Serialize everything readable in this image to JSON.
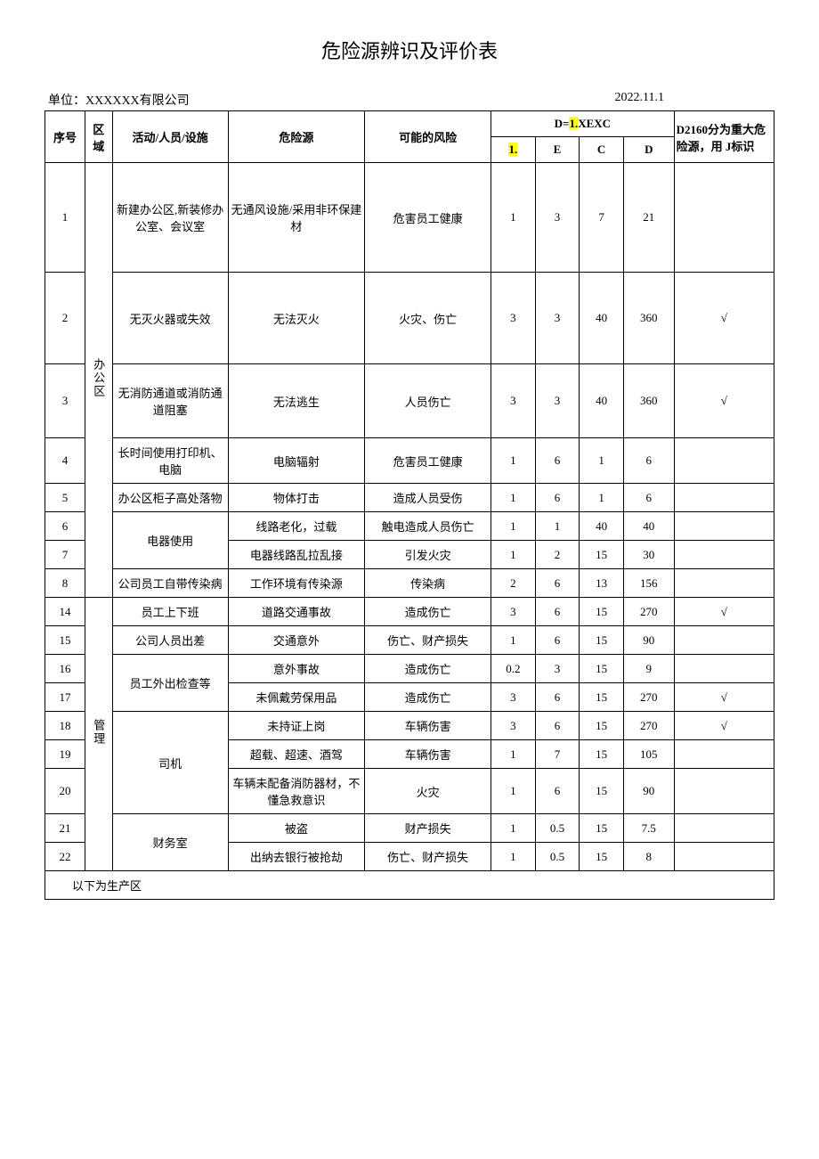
{
  "doc": {
    "title": "危险源辨识及评价表",
    "unit_label": "单位：",
    "unit_name": "XXXXXX有限公司",
    "date": "2022.11.1"
  },
  "header": {
    "seq": "序号",
    "area": "区域",
    "activity": "活动/人员/设施",
    "hazard": "危险源",
    "risk": "可能的风险",
    "formula_prefix": "D=",
    "formula_hl": "1.",
    "formula_suffix": "XEXC",
    "L_hl": "1.",
    "E": "E",
    "C": "C",
    "D": "D",
    "note": "D2160分为重大危险源，用\nJ标识"
  },
  "areas": {
    "office": "办公区",
    "mgmt": "管理"
  },
  "rows": [
    {
      "seq": "1",
      "activity": "新建办公区,新装修办公室、会议室",
      "hazard": "无通风设施/采用非环保建材",
      "risk": "危害员工健康",
      "L": "1",
      "E": "3",
      "C": "7",
      "D": "21",
      "mark": ""
    },
    {
      "seq": "2",
      "activity": "无灭火器或失效",
      "hazard": "无法灭火",
      "risk": "火灾、伤亡",
      "L": "3",
      "E": "3",
      "C": "40",
      "D": "360",
      "mark": "√"
    },
    {
      "seq": "3",
      "activity": "无消防通道或消防通道阻塞",
      "hazard": "无法逃生",
      "risk": "人员伤亡",
      "L": "3",
      "E": "3",
      "C": "40",
      "D": "360",
      "mark": "√"
    },
    {
      "seq": "4",
      "activity": "长时间使用打印机、电脑",
      "hazard": "电脑辐射",
      "risk": "危害员工健康",
      "L": "1",
      "E": "6",
      "C": "1",
      "D": "6",
      "mark": ""
    },
    {
      "seq": "5",
      "activity": "办公区柜子高处落物",
      "hazard": "物体打击",
      "risk": "造成人员受伤",
      "L": "1",
      "E": "6",
      "C": "1",
      "D": "6",
      "mark": ""
    },
    {
      "seq": "6",
      "activity_merge": "电器使用",
      "hazard": "线路老化，过载",
      "risk": "触电造成人员伤亡",
      "L": "1",
      "E": "1",
      "C": "40",
      "D": "40",
      "mark": ""
    },
    {
      "seq": "7",
      "hazard": "电器线路乱拉乱接",
      "risk": "引发火灾",
      "L": "1",
      "E": "2",
      "C": "15",
      "D": "30",
      "mark": ""
    },
    {
      "seq": "8",
      "activity": "公司员工自带传染病",
      "hazard": "工作环境有传染源",
      "risk": "传染病",
      "L": "2",
      "E": "6",
      "C": "13",
      "D": "156",
      "mark": ""
    },
    {
      "seq": "14",
      "activity": "员工上下班",
      "hazard": "道路交通事故",
      "risk": "造成伤亡",
      "L": "3",
      "E": "6",
      "C": "15",
      "D": "270",
      "mark": "√"
    },
    {
      "seq": "15",
      "activity": "公司人员出差",
      "hazard": "交通意外",
      "risk": "伤亡、财产损失",
      "L": "1",
      "E": "6",
      "C": "15",
      "D": "90",
      "mark": ""
    },
    {
      "seq": "16",
      "activity_merge": "员工外出检查等",
      "hazard": "意外事故",
      "risk": "造成伤亡",
      "L": "0.2",
      "E": "3",
      "C": "15",
      "D": "9",
      "mark": ""
    },
    {
      "seq": "17",
      "hazard": "未佩戴劳保用品",
      "risk": "造成伤亡",
      "L": "3",
      "E": "6",
      "C": "15",
      "D": "270",
      "mark": "√"
    },
    {
      "seq": "18",
      "activity_merge": "司机",
      "hazard": "未持证上岗",
      "risk": "车辆伤害",
      "L": "3",
      "E": "6",
      "C": "15",
      "D": "270",
      "mark": "√"
    },
    {
      "seq": "19",
      "hazard": "超载、超速、酒驾",
      "risk": "车辆伤害",
      "L": "1",
      "E": "7",
      "C": "15",
      "D": "105",
      "mark": ""
    },
    {
      "seq": "20",
      "hazard": "车辆未配备消防器材，不懂急救意识",
      "risk": "火灾",
      "L": "1",
      "E": "6",
      "C": "15",
      "D": "90",
      "mark": ""
    },
    {
      "seq": "21",
      "activity_merge": "财务室",
      "hazard": "被盗",
      "risk": "财产损失",
      "L": "1",
      "E": "0.5",
      "C": "15",
      "D": "7.5",
      "mark": ""
    },
    {
      "seq": "22",
      "hazard": "出纳去银行被抢劫",
      "risk": "伤亡、财产损失",
      "L": "1",
      "E": "0.5",
      "C": "15",
      "D": "8",
      "mark": ""
    }
  ],
  "footer_row": "以下为生产区"
}
